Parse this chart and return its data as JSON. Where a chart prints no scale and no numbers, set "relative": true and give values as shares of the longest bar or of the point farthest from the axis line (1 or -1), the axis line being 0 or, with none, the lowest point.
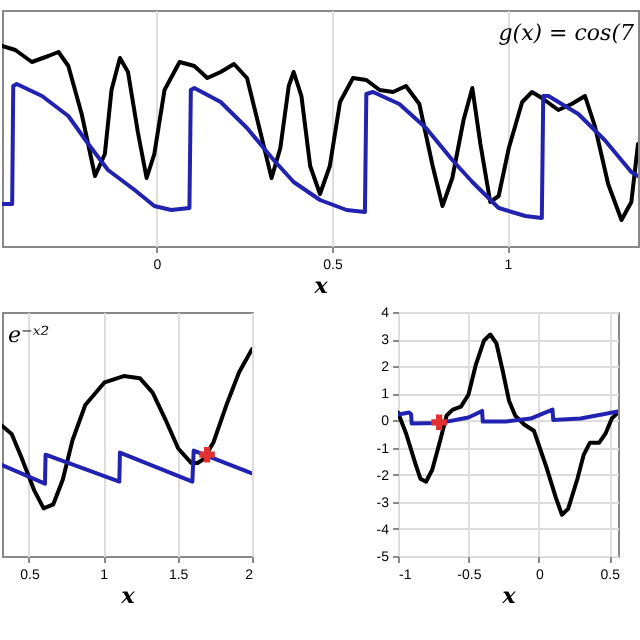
{
  "chart_data": [
    {
      "type": "line",
      "xlabel": "x",
      "relative": true,
      "grid": "x",
      "xlim": [
        -0.44,
        1.372
      ],
      "xticks": [
        0,
        0.5,
        1
      ],
      "annotations": [
        "g(x) = cos(7"
      ],
      "series": [
        {
          "color": "#000000",
          "x": [
            -0.44,
            -0.402,
            -0.355,
            -0.308,
            -0.279,
            -0.251,
            -0.213,
            -0.175,
            -0.147,
            -0.128,
            -0.104,
            -0.081,
            -0.053,
            -0.028,
            -0.006,
            0.023,
            0.066,
            0.108,
            0.145,
            0.183,
            0.221,
            0.258,
            0.296,
            0.328,
            0.353,
            0.377,
            0.391,
            0.413,
            0.438,
            0.466,
            0.494,
            0.523,
            0.56,
            0.598,
            0.636,
            0.674,
            0.711,
            0.749,
            0.787,
            0.815,
            0.843,
            0.875,
            0.9,
            0.923,
            0.951,
            0.975,
            1.004,
            1.042,
            1.07,
            1.098,
            1.145,
            1.183,
            1.221,
            1.249,
            1.287,
            1.325,
            1.353,
            1.372
          ],
          "values": [
            1.0,
            0.98,
            0.92,
            0.95,
            0.97,
            0.9,
            0.66,
            0.35,
            0.46,
            0.78,
            0.94,
            0.87,
            0.57,
            0.34,
            0.46,
            0.78,
            0.92,
            0.9,
            0.84,
            0.87,
            0.91,
            0.84,
            0.57,
            0.34,
            0.49,
            0.8,
            0.87,
            0.75,
            0.4,
            0.26,
            0.4,
            0.72,
            0.84,
            0.83,
            0.78,
            0.77,
            0.8,
            0.71,
            0.4,
            0.2,
            0.34,
            0.63,
            0.79,
            0.51,
            0.22,
            0.25,
            0.49,
            0.72,
            0.77,
            0.74,
            0.68,
            0.71,
            0.75,
            0.6,
            0.31,
            0.13,
            0.22,
            0.51
          ]
        },
        {
          "color": "#2222b0",
          "x": [
            -0.44,
            -0.411,
            -0.408,
            -0.398,
            -0.326,
            -0.251,
            -0.194,
            -0.138,
            -0.062,
            -0.006,
            0.042,
            0.094,
            0.098,
            0.108,
            0.183,
            0.258,
            0.334,
            0.391,
            0.466,
            0.542,
            0.594,
            0.598,
            0.617,
            0.692,
            0.768,
            0.843,
            0.9,
            0.975,
            1.051,
            1.098,
            1.102,
            1.117,
            1.202,
            1.277,
            1.353,
            1.372
          ],
          "values": [
            0.21,
            0.21,
            0.8,
            0.81,
            0.75,
            0.65,
            0.51,
            0.38,
            0.28,
            0.2,
            0.18,
            0.19,
            0.78,
            0.79,
            0.72,
            0.59,
            0.43,
            0.32,
            0.23,
            0.18,
            0.17,
            0.76,
            0.77,
            0.71,
            0.59,
            0.43,
            0.32,
            0.19,
            0.15,
            0.14,
            0.75,
            0.75,
            0.66,
            0.53,
            0.37,
            0.35
          ]
        }
      ]
    },
    {
      "type": "line",
      "xlabel": "x",
      "relative": true,
      "grid": "x",
      "xlim": [
        0.319,
        2
      ],
      "xticks": [
        0.5,
        1,
        1.5,
        2
      ],
      "annotations": [
        "e⁻ˣ²"
      ],
      "series": [
        {
          "color": "#000000",
          "x": [
            0.319,
            0.384,
            0.448,
            0.534,
            0.599,
            0.664,
            0.728,
            0.793,
            0.879,
            1.009,
            1.138,
            1.246,
            1.332,
            1.418,
            1.504,
            1.591,
            1.634,
            1.677,
            1.741,
            1.828,
            1.914,
            2
          ],
          "values": [
            0.63,
            0.59,
            0.48,
            0.32,
            0.23,
            0.25,
            0.37,
            0.56,
            0.73,
            0.84,
            0.87,
            0.86,
            0.79,
            0.66,
            0.52,
            0.45,
            0.45,
            0.47,
            0.55,
            0.73,
            0.89,
            1
          ]
        },
        {
          "color": "#2222b0",
          "x": [
            0.319,
            0.608,
            0.612,
            1.108,
            1.112,
            1.599,
            1.608,
            2
          ],
          "values": [
            0.44,
            0.35,
            0.49,
            0.36,
            0.5,
            0.36,
            0.51,
            0.4
          ]
        },
        {
          "type": "scatter",
          "marker": "cross",
          "color": "#e03030",
          "x": [
            1.698
          ],
          "values": [
            0.49
          ]
        }
      ]
    },
    {
      "type": "line",
      "xlabel": "x",
      "grid": true,
      "xlim": [
        -1,
        0.562
      ],
      "xticks": [
        -1,
        -0.5,
        0,
        0.5
      ],
      "ylim": [
        -5,
        4
      ],
      "yticks": [
        -5,
        -4,
        -3,
        -2,
        -1,
        0,
        1,
        2,
        3,
        4
      ],
      "series": [
        {
          "color": "#000000",
          "x": [
            -1,
            -0.942,
            -0.876,
            -0.841,
            -0.801,
            -0.757,
            -0.699,
            -0.655,
            -0.611,
            -0.553,
            -0.5,
            -0.447,
            -0.389,
            -0.345,
            -0.301,
            -0.257,
            -0.212,
            -0.168,
            -0.102,
            -0.035,
            0.053,
            0.119,
            0.164,
            0.208,
            0.274,
            0.319,
            0.363,
            0.429,
            0.473,
            0.518,
            0.562
          ],
          "values": [
            0.29,
            -0.49,
            -1.6,
            -2.15,
            -2.26,
            -1.82,
            -0.71,
            0.18,
            0.4,
            0.51,
            0.95,
            2.06,
            2.95,
            3.17,
            2.84,
            1.84,
            0.73,
            0.18,
            -0.16,
            -0.38,
            -1.71,
            -2.82,
            -3.48,
            -3.26,
            -2.15,
            -1.26,
            -0.82,
            -0.82,
            -0.49,
            0.07,
            0.29
          ]
        },
        {
          "color": "#2222b0",
          "x": [
            -1,
            -0.92,
            -0.907,
            -0.903,
            -0.699,
            -0.5,
            -0.403,
            -0.398,
            -0.234,
            -0.058,
            0.097,
            0.102,
            0.296,
            0.562
          ],
          "values": [
            0.22,
            0.29,
            0.22,
            -0.11,
            -0.09,
            0.11,
            0.35,
            -0.04,
            -0.04,
            0.07,
            0.4,
            0.02,
            0.07,
            0.33
          ]
        },
        {
          "type": "scatter",
          "marker": "cross",
          "color": "#e03030",
          "x": [
            -0.708
          ],
          "values": [
            -0.07
          ]
        }
      ]
    }
  ]
}
